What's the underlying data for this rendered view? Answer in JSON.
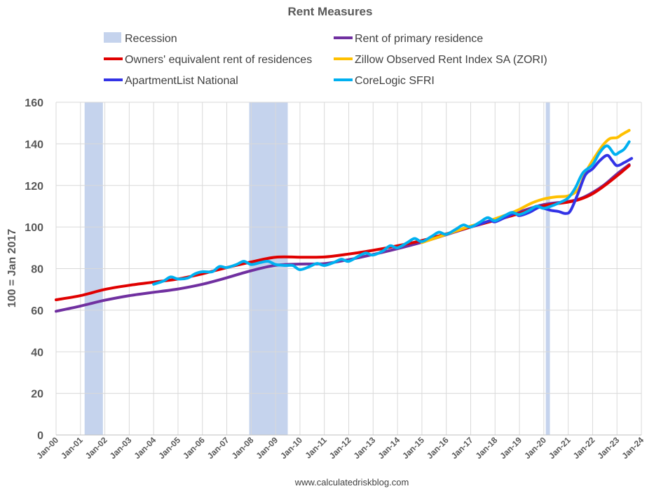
{
  "chart_data": {
    "type": "line",
    "title": "Rent Measures",
    "ylabel": "100 = Jan 2017",
    "xlabel": "",
    "ylim": [
      0,
      160
    ],
    "yticks": [
      "0",
      "20",
      "40",
      "60",
      "80",
      "100",
      "120",
      "140",
      "160"
    ],
    "xlim": [
      2000.0,
      2024.0
    ],
    "xticks": [
      "Jan-00",
      "Jan-01",
      "Jan-02",
      "Jan-03",
      "Jan-04",
      "Jan-05",
      "Jan-06",
      "Jan-07",
      "Jan-08",
      "Jan-09",
      "Jan-10",
      "Jan-11",
      "Jan-12",
      "Jan-13",
      "Jan-14",
      "Jan-15",
      "Jan-16",
      "Jan-17",
      "Jan-18",
      "Jan-19",
      "Jan-20",
      "Jan-21",
      "Jan-22",
      "Jan-23",
      "Jan-24"
    ],
    "grid": "vertical",
    "legend_position": "top",
    "recessions": [
      {
        "start": 2001.17,
        "end": 2001.92
      },
      {
        "start": 2007.92,
        "end": 2009.5
      },
      {
        "start": 2020.08,
        "end": 2020.25
      }
    ],
    "legend": [
      {
        "label": "Recession",
        "color": "#c5d3ed",
        "kind": "box"
      },
      {
        "label": "Rent of primary residence",
        "color": "#7030a0",
        "kind": "line"
      },
      {
        "label": "Owners' equivalent rent of residences",
        "color": "#e00000",
        "kind": "line"
      },
      {
        "label": "Zillow Observed Rent Index SA (ZORI)",
        "color": "#ffc000",
        "kind": "line"
      },
      {
        "label": "ApartmentList National",
        "color": "#3333e6",
        "kind": "line"
      },
      {
        "label": "CoreLogic SFRI",
        "color": "#00b0f0",
        "kind": "line"
      }
    ],
    "series": [
      {
        "name": "Rent of primary residence",
        "color": "#7030a0",
        "x": [
          2000.0,
          2001.0,
          2002.0,
          2003.0,
          2004.0,
          2005.0,
          2006.0,
          2007.0,
          2008.0,
          2009.0,
          2010.0,
          2011.0,
          2012.0,
          2013.0,
          2014.0,
          2015.0,
          2016.0,
          2017.0,
          2018.0,
          2019.0,
          2020.0,
          2021.0,
          2021.5,
          2022.0,
          2022.5,
          2023.0,
          2023.5
        ],
        "values": [
          59.5,
          62,
          64.8,
          67,
          68.6,
          70.2,
          72.5,
          75.6,
          79,
          81.6,
          82.2,
          82.4,
          84.3,
          86.8,
          89.6,
          92.7,
          96.3,
          100,
          103.6,
          107.3,
          110.8,
          112.3,
          113.7,
          116.6,
          120.5,
          125.5,
          130
        ]
      },
      {
        "name": "Owners' equivalent rent of residences",
        "color": "#e00000",
        "x": [
          2000.0,
          2001.0,
          2002.0,
          2003.0,
          2004.0,
          2005.0,
          2006.0,
          2007.0,
          2008.0,
          2009.0,
          2010.0,
          2011.0,
          2012.0,
          2013.0,
          2014.0,
          2015.0,
          2016.0,
          2017.0,
          2018.0,
          2019.0,
          2020.0,
          2021.0,
          2021.5,
          2022.0,
          2022.5,
          2023.0,
          2023.5
        ],
        "values": [
          65,
          67,
          70,
          72,
          73.5,
          75,
          77.5,
          80.5,
          83.2,
          85.5,
          85.5,
          85.6,
          87,
          88.8,
          91,
          93.5,
          96.7,
          100,
          103.2,
          106.5,
          110.2,
          112,
          113.4,
          116,
          120,
          124.6,
          129.5
        ]
      },
      {
        "name": "Zillow Observed Rent Index SA (ZORI)",
        "color": "#ffc000",
        "x": [
          2015.0,
          2015.5,
          2016.0,
          2016.5,
          2017.0,
          2017.5,
          2018.0,
          2018.5,
          2019.0,
          2019.5,
          2020.0,
          2020.5,
          2021.0,
          2021.4,
          2021.7,
          2022.0,
          2022.4,
          2022.7,
          2023.0,
          2023.2,
          2023.5
        ],
        "values": [
          92.5,
          94.5,
          96.5,
          98.5,
          100.5,
          102,
          104,
          106,
          108.5,
          111.5,
          113.5,
          114.5,
          115,
          118,
          126,
          132,
          139,
          142.5,
          143,
          144.5,
          146.5
        ]
      },
      {
        "name": "ApartmentList National",
        "color": "#3333e6",
        "x": [
          2017.0,
          2017.4,
          2017.8,
          2018.0,
          2018.4,
          2018.8,
          2019.0,
          2019.4,
          2019.8,
          2020.0,
          2020.3,
          2020.6,
          2020.9,
          2021.1,
          2021.4,
          2021.7,
          2022.0,
          2022.3,
          2022.6,
          2022.8,
          2023.0,
          2023.3,
          2023.6
        ],
        "values": [
          100,
          101.5,
          103,
          102.5,
          104.5,
          106.5,
          105.5,
          107,
          109.5,
          109,
          108,
          107.5,
          106.5,
          108,
          116,
          125,
          128,
          132,
          134.5,
          132,
          129.5,
          131,
          133
        ]
      },
      {
        "name": "CoreLogic SFRI",
        "color": "#00b0f0",
        "x": [
          2004.0,
          2004.4,
          2004.7,
          2005.0,
          2005.4,
          2005.7,
          2006.0,
          2006.4,
          2006.7,
          2007.0,
          2007.4,
          2007.7,
          2008.0,
          2008.4,
          2008.7,
          2009.0,
          2009.4,
          2009.7,
          2010.0,
          2010.4,
          2010.7,
          2011.0,
          2011.4,
          2011.7,
          2012.0,
          2012.4,
          2012.7,
          2013.0,
          2013.4,
          2013.7,
          2014.0,
          2014.4,
          2014.7,
          2015.0,
          2015.4,
          2015.7,
          2016.0,
          2016.4,
          2016.7,
          2017.0,
          2017.4,
          2017.7,
          2018.0,
          2018.4,
          2018.7,
          2019.0,
          2019.4,
          2019.7,
          2020.0,
          2020.4,
          2020.7,
          2021.0,
          2021.3,
          2021.6,
          2022.0,
          2022.3,
          2022.6,
          2022.9,
          2023.1,
          2023.3,
          2023.5
        ],
        "values": [
          72.5,
          74,
          76,
          75,
          75.5,
          77.5,
          78.5,
          78.5,
          81,
          80.5,
          82,
          83.5,
          82,
          83,
          83.5,
          82,
          81.5,
          81.5,
          79.5,
          81,
          82.5,
          81.5,
          83,
          84.5,
          83.5,
          86,
          87.5,
          86.5,
          88.5,
          91,
          90,
          92.5,
          94.5,
          93,
          95.5,
          97.5,
          96.5,
          99,
          101,
          100,
          102.5,
          104.5,
          103,
          105.5,
          107,
          106,
          108,
          110,
          109,
          110.5,
          112,
          114,
          119,
          126,
          130,
          136,
          139,
          135,
          136,
          137.5,
          141
        ]
      }
    ]
  },
  "footer": {
    "source": "www.calculatedriskblog.com"
  }
}
